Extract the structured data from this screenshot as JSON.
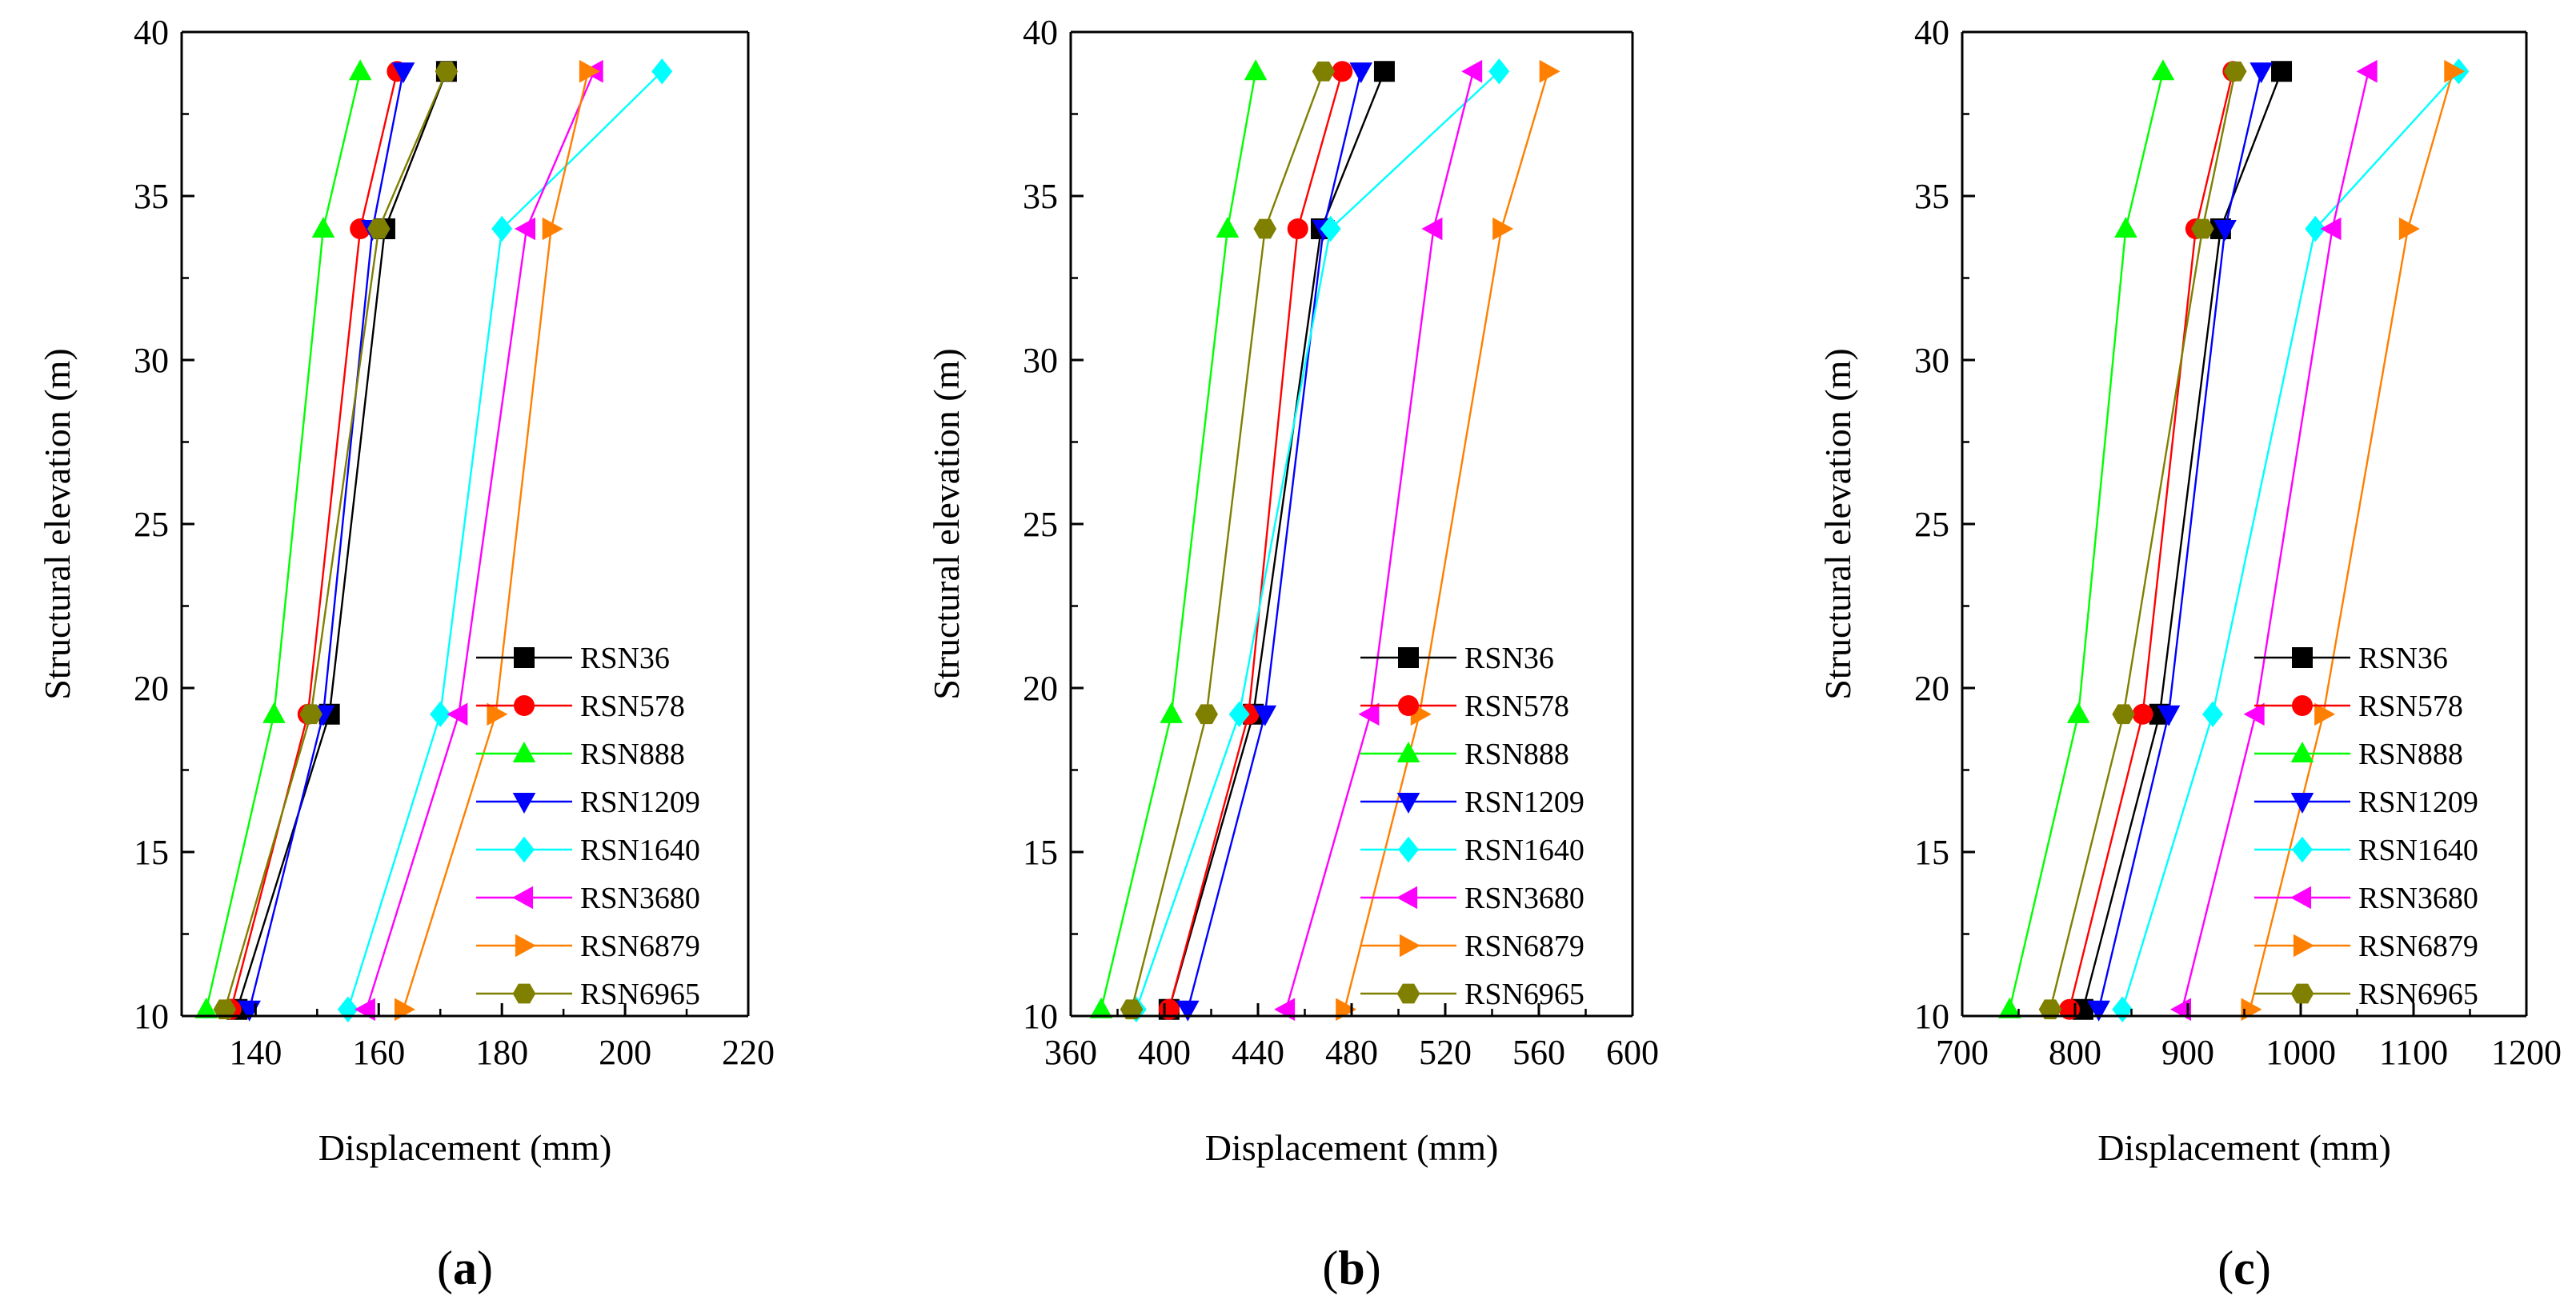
{
  "figure": {
    "series_names": [
      "RSN36",
      "RSN578",
      "RSN888",
      "RSN1209",
      "RSN1640",
      "RSN3680",
      "RSN6879",
      "RSN6965"
    ],
    "series_styles": [
      {
        "color": "#000000",
        "marker": "square"
      },
      {
        "color": "#ff0000",
        "marker": "circle"
      },
      {
        "color": "#00ff00",
        "marker": "triangle-up"
      },
      {
        "color": "#0000ff",
        "marker": "triangle-down"
      },
      {
        "color": "#00ffff",
        "marker": "diamond"
      },
      {
        "color": "#ff00ff",
        "marker": "triangle-left"
      },
      {
        "color": "#ff7f00",
        "marker": "triangle-right"
      },
      {
        "color": "#7f7f00",
        "marker": "hexagon"
      }
    ]
  },
  "chart_data": [
    {
      "panel_label": "a",
      "type": "line",
      "xlabel": "Displacement (mm)",
      "ylabel": "Structural elevation (m)",
      "xlim": [
        128,
        220
      ],
      "ylim": [
        10,
        40
      ],
      "xticks": [
        140,
        160,
        180,
        200,
        220
      ],
      "yticks": [
        10,
        15,
        20,
        25,
        30,
        35,
        40
      ],
      "legend_position": "bottom-right",
      "elevations": [
        10.2,
        19.2,
        34.0,
        38.8
      ],
      "series": [
        {
          "name": "RSN36",
          "values": [
            137,
            152,
            161,
            171
          ]
        },
        {
          "name": "RSN578",
          "values": [
            136,
            148.5,
            157,
            163
          ]
        },
        {
          "name": "RSN888",
          "values": [
            132,
            143,
            151,
            157
          ]
        },
        {
          "name": "RSN1209",
          "values": [
            139,
            151,
            159,
            164
          ]
        },
        {
          "name": "RSN1640",
          "values": [
            155,
            170,
            180,
            206
          ]
        },
        {
          "name": "RSN3680",
          "values": [
            158,
            173,
            184,
            195
          ]
        },
        {
          "name": "RSN6879",
          "values": [
            164,
            179,
            188,
            194
          ]
        },
        {
          "name": "RSN6965",
          "values": [
            135,
            149,
            160,
            171
          ]
        }
      ]
    },
    {
      "panel_label": "b",
      "type": "line",
      "xlabel": "Displacement (mm)",
      "ylabel": "Structural elevation (m)",
      "xlim": [
        360,
        600
      ],
      "ylim": [
        10,
        40
      ],
      "xticks": [
        360,
        400,
        440,
        480,
        520,
        560,
        600
      ],
      "yticks": [
        10,
        15,
        20,
        25,
        30,
        35,
        40
      ],
      "legend_position": "bottom-right",
      "elevations": [
        10.2,
        19.2,
        34.0,
        38.8
      ],
      "series": [
        {
          "name": "RSN36",
          "values": [
            402,
            438,
            467,
            494
          ]
        },
        {
          "name": "RSN578",
          "values": [
            402,
            436,
            457,
            476
          ]
        },
        {
          "name": "RSN888",
          "values": [
            373,
            403,
            427,
            439
          ]
        },
        {
          "name": "RSN1209",
          "values": [
            410,
            443,
            468,
            484
          ]
        },
        {
          "name": "RSN1640",
          "values": [
            388,
            432,
            471,
            543
          ]
        },
        {
          "name": "RSN3680",
          "values": [
            452,
            488,
            515,
            532
          ]
        },
        {
          "name": "RSN6879",
          "values": [
            477,
            509,
            544,
            564
          ]
        },
        {
          "name": "RSN6965",
          "values": [
            386,
            418,
            443,
            468
          ]
        }
      ]
    },
    {
      "panel_label": "c",
      "type": "line",
      "xlabel": "Displacement (mm)",
      "ylabel": "Structural elevation (m)",
      "xlim": [
        700,
        1200
      ],
      "ylim": [
        10,
        40
      ],
      "xticks": [
        700,
        800,
        900,
        1000,
        1100,
        1200
      ],
      "yticks": [
        10,
        15,
        20,
        25,
        30,
        35,
        40
      ],
      "legend_position": "bottom-right",
      "elevations": [
        10.2,
        19.2,
        34.0,
        38.8
      ],
      "series": [
        {
          "name": "RSN36",
          "values": [
            807,
            875,
            929,
            983
          ]
        },
        {
          "name": "RSN578",
          "values": [
            795,
            860,
            907,
            940
          ]
        },
        {
          "name": "RSN888",
          "values": [
            742,
            803,
            845,
            878
          ]
        },
        {
          "name": "RSN1209",
          "values": [
            821,
            883,
            933,
            965
          ]
        },
        {
          "name": "RSN1640",
          "values": [
            842,
            922,
            1013,
            1140
          ]
        },
        {
          "name": "RSN3680",
          "values": [
            895,
            960,
            1028,
            1060
          ]
        },
        {
          "name": "RSN6879",
          "values": [
            955,
            1020,
            1095,
            1135
          ]
        },
        {
          "name": "RSN6965",
          "values": [
            778,
            843,
            913,
            942
          ]
        }
      ]
    }
  ]
}
